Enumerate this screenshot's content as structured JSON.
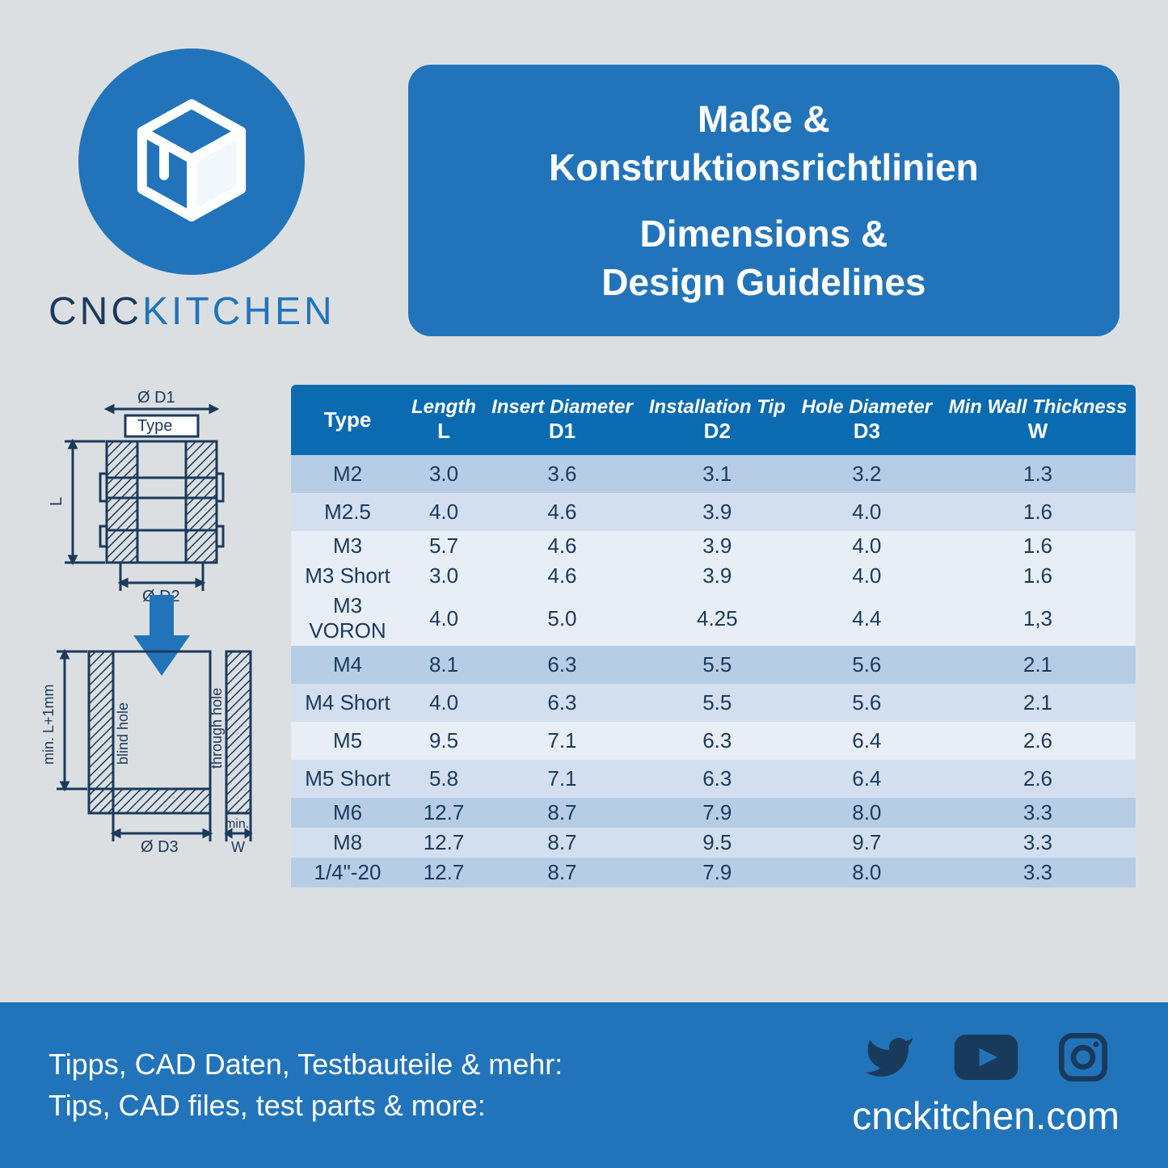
{
  "logo": {
    "cnc": "CNC",
    "kitchen": "KITCHEN"
  },
  "title": {
    "de1": "Maße &",
    "de2": "Konstruktionsrichtlinien",
    "en1": "Dimensions &",
    "en2": "Design Guidelines"
  },
  "colors": {
    "brand_blue": "#2274ba",
    "header_blue": "#0a6bb0",
    "dark_navy": "#1a3a5c",
    "bg_gray": "#dcdfe2",
    "row_shade_a": "#b7cde6",
    "row_shade_b": "#d3dfee",
    "row_shade_c": "#e8eef6"
  },
  "diagram": {
    "d1_label": "Ø D1",
    "type_label": "Type",
    "l_label": "L",
    "d2_label": "Ø D2",
    "blind_label": "blind hole",
    "through_label": "through hole",
    "min_l_label": "min. L+1mm",
    "d3_label": "Ø D3",
    "min_w_label": "min. W",
    "stroke": "#1a3a5c",
    "arrow_fill": "#2274ba"
  },
  "table": {
    "columns": [
      {
        "top": "",
        "bottom": "Type"
      },
      {
        "top": "Length",
        "bottom": "L"
      },
      {
        "top": "Insert Diameter",
        "bottom": "D1"
      },
      {
        "top": "Installation Tip",
        "bottom": "D2"
      },
      {
        "top": "Hole Diameter",
        "bottom": "D3"
      },
      {
        "top": "Min Wall Thickness",
        "bottom": "W"
      }
    ],
    "rows": [
      {
        "cells": [
          "M2",
          "3.0",
          "3.6",
          "3.1",
          "3.2",
          "1.3"
        ],
        "shade": "#b7cde6"
      },
      {
        "cells": [
          "M2.5",
          "4.0",
          "4.6",
          "3.9",
          "4.0",
          "1.6"
        ],
        "shade": "#d3dfee"
      },
      {
        "cells": [
          "M3",
          "5.7",
          "4.6",
          "3.9",
          "4.0",
          "1.6"
        ],
        "shade": "#e8eef6",
        "tight": true
      },
      {
        "cells": [
          "M3 Short",
          "3.0",
          "4.6",
          "3.9",
          "4.0",
          "1.6"
        ],
        "shade": "#e8eef6",
        "tight": true
      },
      {
        "cells": [
          "M3 VORON",
          "4.0",
          "5.0",
          "4.25",
          "4.4",
          "1,3"
        ],
        "shade": "#e8eef6",
        "tight": true
      },
      {
        "cells": [
          "M4",
          "8.1",
          "6.3",
          "5.5",
          "5.6",
          "2.1"
        ],
        "shade": "#b7cde6"
      },
      {
        "cells": [
          "M4 Short",
          "4.0",
          "6.3",
          "5.5",
          "5.6",
          "2.1"
        ],
        "shade": "#d3dfee"
      },
      {
        "cells": [
          "M5",
          "9.5",
          "7.1",
          "6.3",
          "6.4",
          "2.6"
        ],
        "shade": "#e8eef6"
      },
      {
        "cells": [
          "M5 Short",
          "5.8",
          "7.1",
          "6.3",
          "6.4",
          "2.6"
        ],
        "shade": "#d3dfee"
      },
      {
        "cells": [
          "M6",
          "12.7",
          "8.7",
          "7.9",
          "8.0",
          "3.3"
        ],
        "shade": "#b7cde6",
        "tight": true
      },
      {
        "cells": [
          "M8",
          "12.7",
          "8.7",
          "9.5",
          "9.7",
          "3.3"
        ],
        "shade": "#d3dfee",
        "tight": true
      },
      {
        "cells": [
          "1/4\"-20",
          "12.7",
          "8.7",
          "7.9",
          "8.0",
          "3.3"
        ],
        "shade": "#b7cde6",
        "tight": true
      }
    ]
  },
  "footer": {
    "de": "Tipps, CAD Daten, Testbauteile & mehr:",
    "en": "Tips, CAD files, test parts & more:",
    "url": "cnckitchen.com"
  }
}
